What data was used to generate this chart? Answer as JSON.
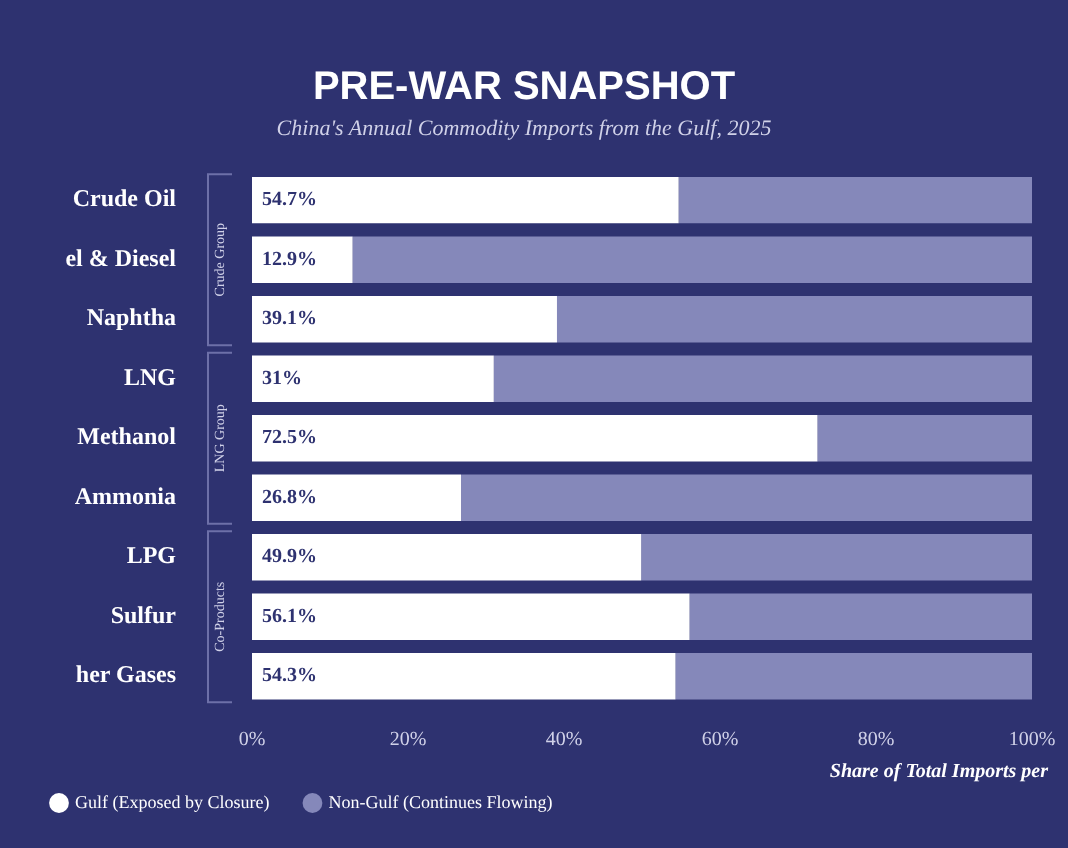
{
  "chart_data": {
    "type": "bar",
    "orientation": "horizontal",
    "stacked": true,
    "title": "PRE-WAR SNAPSHOT",
    "subtitle": "China's Annual Commodity Imports from the Gulf, 2025",
    "categories": [
      "Crude Oil",
      "el & Diesel",
      "Naphtha",
      "LNG",
      "Methanol",
      "Ammonia",
      "LPG",
      "Sulfur",
      "her Gases"
    ],
    "series": [
      {
        "name": "Gulf (Exposed by Closure)",
        "color": "#ffffff",
        "values": [
          54.7,
          12.9,
          39.1,
          31,
          72.5,
          26.8,
          49.9,
          56.1,
          54.3
        ],
        "value_labels": [
          "54.7%",
          "12.9%",
          "39.1%",
          "31%",
          "72.5%",
          "26.8%",
          "49.9%",
          "56.1%",
          "54.3%"
        ]
      },
      {
        "name": "Non-Gulf (Continues Flowing)",
        "color": "#8588ba",
        "values": [
          45.3,
          87.1,
          60.9,
          69,
          27.5,
          73.2,
          50.1,
          43.9,
          45.7
        ]
      }
    ],
    "xlim": [
      0,
      100
    ],
    "xticks": [
      {
        "value": 0,
        "label": "0%"
      },
      {
        "value": 20,
        "label": "20%"
      },
      {
        "value": 40,
        "label": "40%"
      },
      {
        "value": 60,
        "label": "60%"
      },
      {
        "value": 80,
        "label": "80%"
      },
      {
        "value": 100,
        "label": "100%"
      }
    ],
    "annotations": [
      "Crude Group",
      "LNG Group",
      "Co-Products",
      "Share of Total Imports per"
    ],
    "legend": "bottom left",
    "grid": false
  }
}
